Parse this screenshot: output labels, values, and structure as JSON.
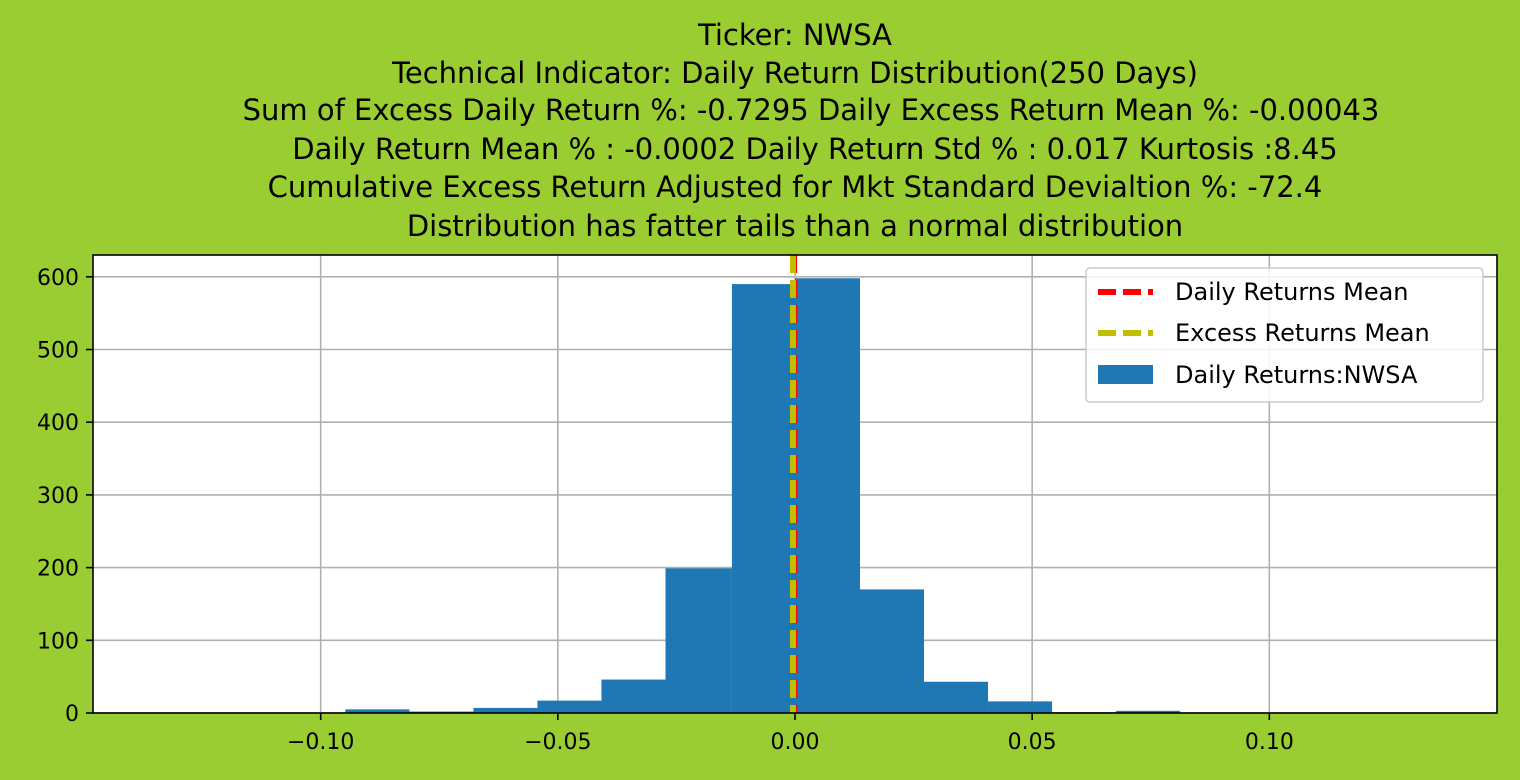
{
  "chart_data": {
    "type": "bar",
    "title_lines": [
      "Ticker: NWSA",
      "Technical Indicator: Daily Return Distribution(250 Days)",
      "Sum of Excess Daily Return %: -0.7295   Daily Excess Return Mean %: -0.00043",
      "Daily Return Mean % : -0.0002    Daily Return Std % : 0.017  Kurtosis :8.45",
      "Cumulative Excess Return Adjusted for Mkt Standard Devialtion %: -72.4",
      "Distribution has fatter tails than a normal distribution"
    ],
    "xlim": [
      -0.148,
      0.148
    ],
    "ylim": [
      0,
      630
    ],
    "xticks": [
      -0.1,
      -0.05,
      0.0,
      0.05,
      0.1
    ],
    "xtick_labels": [
      "−0.10",
      "−0.05",
      "0.00",
      "0.05",
      "0.10"
    ],
    "yticks": [
      0,
      100,
      200,
      300,
      400,
      500,
      600
    ],
    "ytick_labels": [
      "0",
      "100",
      "200",
      "300",
      "400",
      "500",
      "600"
    ],
    "grid": true,
    "legend_position": "top-right",
    "series": [
      {
        "name": "Daily Returns:NWSA",
        "color": "#1f77b4",
        "bins": [
          {
            "x0": -0.0948,
            "x1": -0.0813,
            "value": 5
          },
          {
            "x0": -0.0813,
            "x1": -0.0678,
            "value": 2
          },
          {
            "x0": -0.0678,
            "x1": -0.0543,
            "value": 7
          },
          {
            "x0": -0.0543,
            "x1": -0.0408,
            "value": 17
          },
          {
            "x0": -0.0408,
            "x1": -0.0273,
            "value": 46
          },
          {
            "x0": -0.0273,
            "x1": -0.0133,
            "value": 199
          },
          {
            "x0": -0.0133,
            "x1": 0.0,
            "value": 590
          },
          {
            "x0": 0.0,
            "x1": 0.0137,
            "value": 598
          },
          {
            "x0": 0.0137,
            "x1": 0.0272,
            "value": 170
          },
          {
            "x0": 0.0272,
            "x1": 0.0407,
            "value": 43
          },
          {
            "x0": 0.0407,
            "x1": 0.0542,
            "value": 16
          },
          {
            "x0": 0.0542,
            "x1": 0.0677,
            "value": 1
          },
          {
            "x0": 0.0677,
            "x1": 0.0812,
            "value": 3
          }
        ]
      }
    ],
    "vlines": [
      {
        "name": "Daily Returns Mean",
        "x": -0.0002,
        "color": "#ff0000",
        "style": "dashed"
      },
      {
        "name": "Excess Returns Mean",
        "x": -0.00043,
        "color": "#bfbf00",
        "style": "dashed"
      }
    ]
  }
}
